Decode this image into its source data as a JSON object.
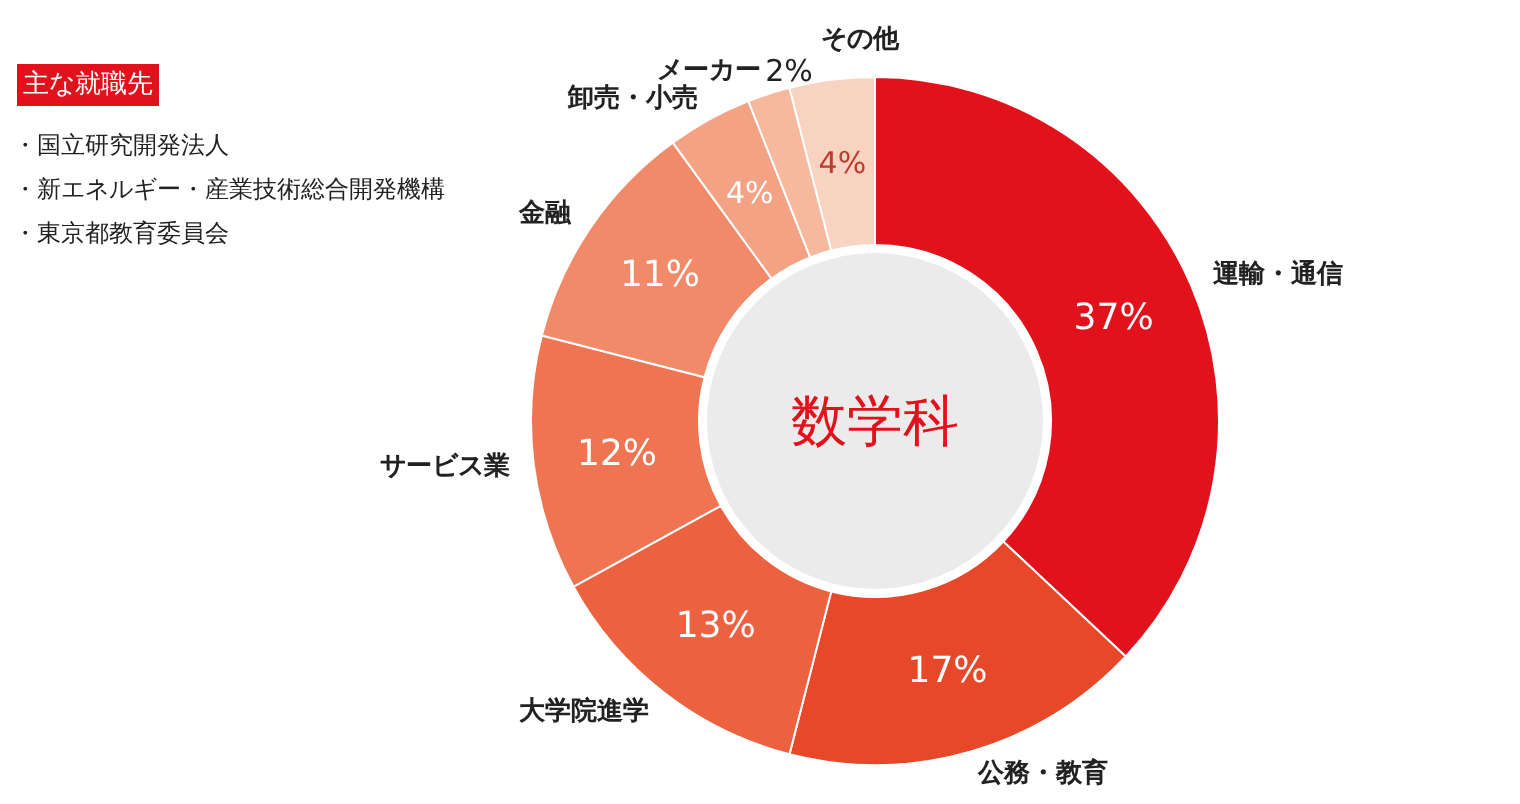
{
  "chart_data": {
    "type": "donut",
    "title": "数学科",
    "categories": [
      "運輸・通信",
      "公務・教育",
      "大学院進学",
      "サービス業",
      "金融",
      "卸売・小売",
      "メーカー",
      "その他"
    ],
    "values": [
      37,
      17,
      13,
      12,
      11,
      4,
      2,
      4
    ],
    "value_labels": [
      "37%",
      "17%",
      "13%",
      "12%",
      "11%",
      "4%",
      "2%",
      "4%"
    ],
    "colors": [
      "#e2121d",
      "#e8482a",
      "#ec6140",
      "#ee7452",
      "#f08a68",
      "#f3a284",
      "#f6b99e",
      "#f8d3c2"
    ],
    "annotations": [
      "主な就職先",
      "・国立研究開発法人",
      "・新エネルギー・産業技術総合開発機構",
      "・東京都教育委員会"
    ]
  }
}
